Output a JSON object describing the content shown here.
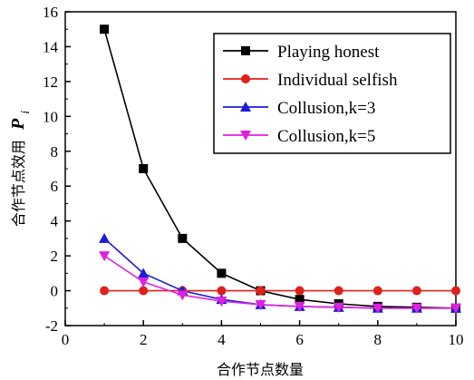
{
  "chart_data": {
    "type": "line",
    "xlabel": "合作节点数量",
    "ylabel": "合作节点效用",
    "ylabel_symbol": "P",
    "ylabel_subscript": "i",
    "xlim": [
      0,
      10
    ],
    "ylim": [
      -2,
      16
    ],
    "xticks": [
      0,
      2,
      4,
      6,
      8,
      10
    ],
    "yticks": [
      -2,
      0,
      2,
      4,
      6,
      8,
      10,
      12,
      14,
      16
    ],
    "grid": false,
    "legend_position": "top-right",
    "x": [
      1,
      2,
      3,
      4,
      5,
      6,
      7,
      8,
      9,
      10
    ],
    "series": [
      {
        "name": "Playing honest",
        "color": "#000000",
        "marker": "square",
        "values": [
          15,
          7,
          3,
          1,
          0,
          -0.5,
          -0.75,
          -0.9,
          -0.95,
          -1
        ]
      },
      {
        "name": "Individual selfish",
        "color": "#e0201b",
        "marker": "circle",
        "values": [
          0,
          0,
          0,
          0,
          0,
          0,
          0,
          0,
          0,
          0
        ]
      },
      {
        "name": "Collusion,k=3",
        "color": "#1c1cd6",
        "marker": "triangle-up",
        "values": [
          3,
          1,
          0,
          -0.5,
          -0.8,
          -0.9,
          -0.95,
          -1,
          -1,
          -1
        ]
      },
      {
        "name": "Collusion,k=5",
        "color": "#e020e0",
        "marker": "triangle-down",
        "values": [
          2,
          0.5,
          -0.25,
          -0.6,
          -0.8,
          -0.9,
          -0.95,
          -1,
          -1,
          -1
        ]
      }
    ]
  }
}
